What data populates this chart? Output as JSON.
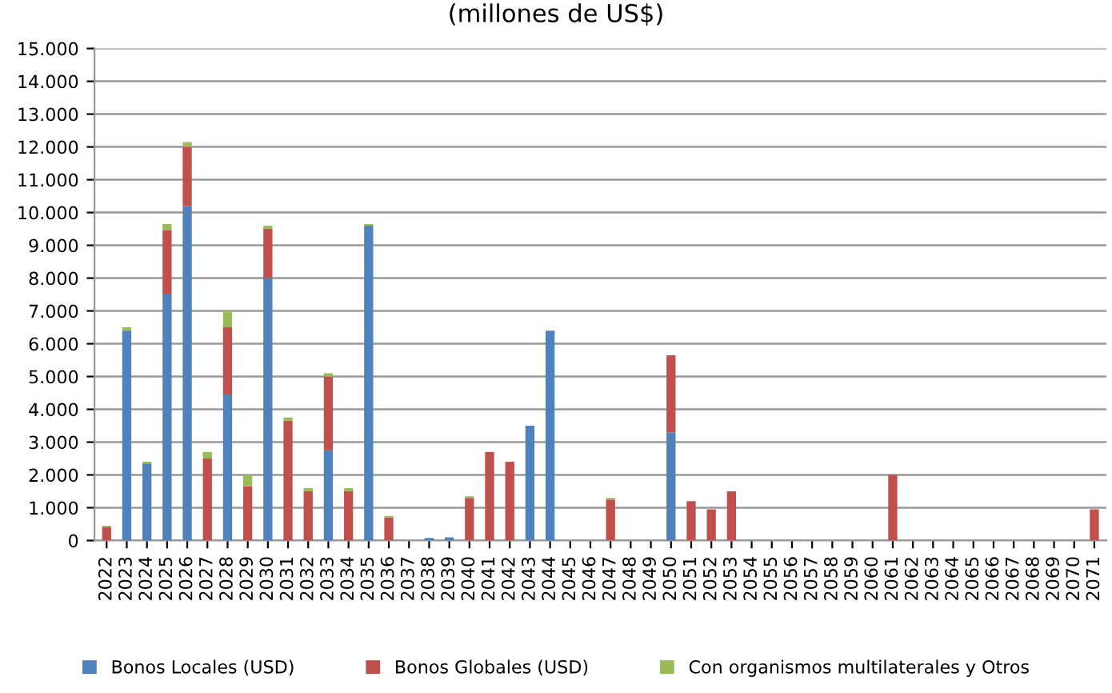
{
  "chart_data": {
    "type": "bar",
    "title": "(millones de US$)",
    "stacked": true,
    "categories": [
      "2022",
      "2023",
      "2024",
      "2025",
      "2026",
      "2027",
      "2028",
      "2029",
      "2030",
      "2031",
      "2032",
      "2033",
      "2034",
      "2035",
      "2036",
      "2037",
      "2038",
      "2039",
      "2040",
      "2041",
      "2042",
      "2043",
      "2044",
      "2045",
      "2046",
      "2047",
      "2048",
      "2049",
      "2050",
      "2051",
      "2052",
      "2053",
      "2054",
      "2055",
      "2056",
      "2057",
      "2058",
      "2059",
      "2060",
      "2061",
      "2062",
      "2063",
      "2064",
      "2065",
      "2066",
      "2067",
      "2068",
      "2069",
      "2070",
      "2071"
    ],
    "series": [
      {
        "name": "Bonos Locales (USD)",
        "color": "#4f81bd",
        "values": [
          0,
          6400,
          2350,
          7500,
          10200,
          0,
          4450,
          0,
          8000,
          0,
          0,
          2750,
          0,
          9600,
          0,
          0,
          80,
          100,
          0,
          0,
          0,
          3500,
          6400,
          0,
          0,
          0,
          0,
          0,
          3300,
          0,
          0,
          0,
          0,
          0,
          0,
          0,
          0,
          0,
          0,
          0,
          0,
          0,
          0,
          0,
          0,
          0,
          0,
          0,
          0,
          0
        ]
      },
      {
        "name": "Bonos Globales (USD)",
        "color": "#c0504d",
        "values": [
          400,
          0,
          0,
          1950,
          1800,
          2500,
          2050,
          1650,
          1500,
          3650,
          1500,
          2250,
          1500,
          0,
          700,
          0,
          0,
          0,
          1300,
          2700,
          2400,
          0,
          0,
          0,
          0,
          1250,
          0,
          0,
          2350,
          1200,
          950,
          1500,
          0,
          0,
          0,
          0,
          0,
          0,
          0,
          2000,
          0,
          0,
          0,
          0,
          0,
          0,
          0,
          0,
          0,
          950
        ]
      },
      {
        "name": "Con organismos multilaterales y Otros",
        "color": "#9bbb59",
        "values": [
          50,
          100,
          50,
          200,
          150,
          200,
          500,
          350,
          100,
          100,
          100,
          100,
          100,
          50,
          50,
          0,
          0,
          0,
          50,
          0,
          0,
          0,
          0,
          0,
          0,
          50,
          0,
          0,
          0,
          0,
          0,
          0,
          0,
          0,
          0,
          0,
          0,
          0,
          0,
          0,
          0,
          0,
          0,
          0,
          0,
          0,
          0,
          0,
          0,
          0
        ]
      }
    ],
    "ylim": [
      0,
      15000
    ],
    "yticks": [
      {
        "value": 0,
        "label": "0"
      },
      {
        "value": 1000,
        "label": "1.000"
      },
      {
        "value": 2000,
        "label": "2.000"
      },
      {
        "value": 3000,
        "label": "3.000"
      },
      {
        "value": 4000,
        "label": "4.000"
      },
      {
        "value": 5000,
        "label": "5.000"
      },
      {
        "value": 6000,
        "label": "6.000"
      },
      {
        "value": 7000,
        "label": "7.000"
      },
      {
        "value": 8000,
        "label": "8.000"
      },
      {
        "value": 9000,
        "label": "9.000"
      },
      {
        "value": 10000,
        "label": "10.000"
      },
      {
        "value": 11000,
        "label": "11.000"
      },
      {
        "value": 12000,
        "label": "12.000"
      },
      {
        "value": 13000,
        "label": "13.000"
      },
      {
        "value": 14000,
        "label": "14.000"
      },
      {
        "value": 15000,
        "label": "15.000"
      }
    ],
    "grid": "y",
    "legend": "bottom"
  }
}
